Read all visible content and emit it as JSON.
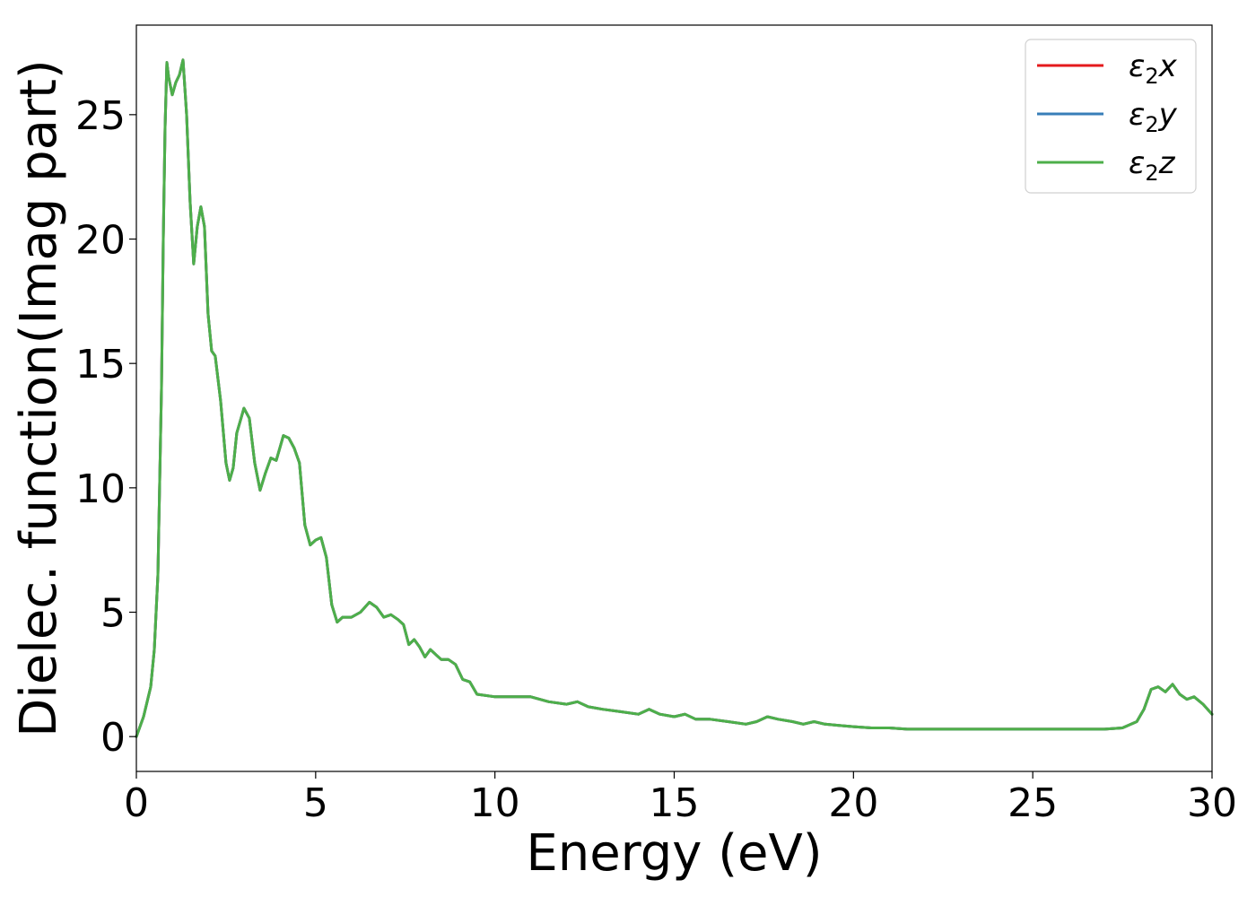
{
  "chart_data": {
    "type": "line",
    "title": "",
    "xlabel": "Energy (eV)",
    "ylabel": "Dielec. function(Imag part)",
    "xlim": [
      0,
      30
    ],
    "ylim": [
      -1.4,
      28.6
    ],
    "xticks": [
      0,
      5,
      10,
      15,
      20,
      25,
      30
    ],
    "yticks": [
      0,
      5,
      10,
      15,
      20,
      25
    ],
    "grid": false,
    "legend_position": "top-right",
    "series": [
      {
        "name": "ε₂x",
        "legend_main": "ε",
        "legend_sub": "2",
        "legend_var": "x",
        "color": "#e41a1c"
      },
      {
        "name": "ε₂y",
        "legend_main": "ε",
        "legend_sub": "2",
        "legend_var": "y",
        "color": "#377eb8"
      },
      {
        "name": "ε₂z",
        "legend_main": "ε",
        "legend_sub": "2",
        "legend_var": "z",
        "color": "#4daf4a"
      }
    ],
    "x": [
      0,
      0.2,
      0.4,
      0.5,
      0.6,
      0.7,
      0.75,
      0.8,
      0.85,
      0.9,
      1.0,
      1.1,
      1.2,
      1.3,
      1.4,
      1.5,
      1.6,
      1.7,
      1.8,
      1.9,
      2.0,
      2.1,
      2.2,
      2.35,
      2.5,
      2.6,
      2.7,
      2.8,
      2.9,
      3.0,
      3.15,
      3.3,
      3.45,
      3.6,
      3.75,
      3.9,
      4.0,
      4.1,
      4.25,
      4.4,
      4.55,
      4.7,
      4.85,
      5.0,
      5.15,
      5.3,
      5.45,
      5.6,
      5.75,
      6.0,
      6.25,
      6.5,
      6.7,
      6.9,
      7.1,
      7.3,
      7.45,
      7.6,
      7.75,
      7.9,
      8.05,
      8.2,
      8.35,
      8.5,
      8.7,
      8.9,
      9.1,
      9.3,
      9.5,
      10.0,
      10.5,
      10.75,
      11.0,
      11.5,
      12.0,
      12.3,
      12.6,
      13.0,
      13.5,
      14.0,
      14.3,
      14.6,
      15.0,
      15.3,
      15.6,
      16.0,
      16.5,
      17.0,
      17.3,
      17.6,
      17.9,
      18.3,
      18.6,
      18.9,
      19.2,
      19.6,
      20.0,
      20.5,
      21.0,
      21.5,
      22.0,
      22.5,
      23.0,
      23.5,
      24.0,
      24.5,
      25.0,
      25.5,
      26.0,
      26.5,
      27.0,
      27.5,
      27.9,
      28.1,
      28.3,
      28.5,
      28.7,
      28.9,
      29.1,
      29.3,
      29.5,
      29.75,
      30.0
    ],
    "values": [
      0,
      0.8,
      2.0,
      3.5,
      6.5,
      14.0,
      20.0,
      24.5,
      27.1,
      26.5,
      25.8,
      26.3,
      26.6,
      27.2,
      25.0,
      21.5,
      19.0,
      20.5,
      21.3,
      20.5,
      17.0,
      15.5,
      15.3,
      13.5,
      11.0,
      10.3,
      10.8,
      12.2,
      12.7,
      13.2,
      12.8,
      11.0,
      9.9,
      10.6,
      11.2,
      11.1,
      11.6,
      12.1,
      12.0,
      11.6,
      11.0,
      8.5,
      7.7,
      7.9,
      8.0,
      7.2,
      5.3,
      4.6,
      4.8,
      4.8,
      5.0,
      5.4,
      5.2,
      4.8,
      4.9,
      4.7,
      4.5,
      3.7,
      3.9,
      3.6,
      3.2,
      3.5,
      3.3,
      3.1,
      3.1,
      2.9,
      2.3,
      2.2,
      1.7,
      1.6,
      1.6,
      1.6,
      1.6,
      1.4,
      1.3,
      1.4,
      1.2,
      1.1,
      1.0,
      0.9,
      1.1,
      0.9,
      0.8,
      0.9,
      0.7,
      0.7,
      0.6,
      0.5,
      0.6,
      0.8,
      0.7,
      0.6,
      0.5,
      0.6,
      0.5,
      0.45,
      0.4,
      0.35,
      0.35,
      0.3,
      0.3,
      0.3,
      0.3,
      0.3,
      0.3,
      0.3,
      0.3,
      0.3,
      0.3,
      0.3,
      0.3,
      0.35,
      0.6,
      1.1,
      1.9,
      2.0,
      1.8,
      2.1,
      1.7,
      1.5,
      1.6,
      1.3,
      0.9
    ]
  }
}
